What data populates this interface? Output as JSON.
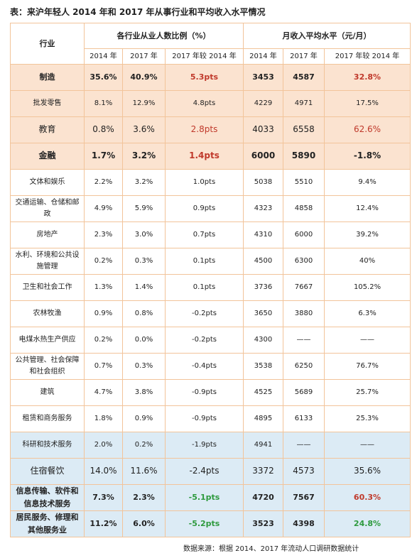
{
  "title": "表：来沪年轻人 2014 年和 2017 年从事行业和平均收入水平情况",
  "table": {
    "header": {
      "industry": "行业",
      "group1": "各行业从业人数比例（%）",
      "group2": "月收入平均水平（元/月）",
      "subheaders": [
        "2014 年",
        "2017 年",
        "2017 年较 2014 年",
        "2014 年",
        "2017 年",
        "2017 年较 2014 年"
      ]
    },
    "rows": [
      [
        "制造",
        "35.6%",
        "40.9%",
        "5.3pts",
        "3453",
        "4587",
        "32.8%"
      ],
      [
        "批发零售",
        "8.1%",
        "12.9%",
        "4.8pts",
        "4229",
        "4971",
        "17.5%"
      ],
      [
        "教育",
        "0.8%",
        "3.6%",
        "2.8pts",
        "4033",
        "6558",
        "62.6%"
      ],
      [
        "金融",
        "1.7%",
        "3.2%",
        "1.4pts",
        "6000",
        "5890",
        "-1.8%"
      ],
      [
        "文体和娱乐",
        "2.2%",
        "3.2%",
        "1.0pts",
        "5038",
        "5510",
        "9.4%"
      ],
      [
        "交通运输、仓储和邮政",
        "4.9%",
        "5.9%",
        "0.9pts",
        "4323",
        "4858",
        "12.4%"
      ],
      [
        "房地产",
        "2.3%",
        "3.0%",
        "0.7pts",
        "4310",
        "6000",
        "39.2%"
      ],
      [
        "水利、环境和公共设施管理",
        "0.2%",
        "0.3%",
        "0.1pts",
        "4500",
        "6300",
        "40%"
      ],
      [
        "卫生和社会工作",
        "1.3%",
        "1.4%",
        "0.1pts",
        "3736",
        "7667",
        "105.2%"
      ],
      [
        "农林牧渔",
        "0.9%",
        "0.8%",
        "-0.2pts",
        "3650",
        "3880",
        "6.3%"
      ],
      [
        "电煤水热生产供应",
        "0.2%",
        "0.0%",
        "-0.2pts",
        "4300",
        "——",
        "——"
      ],
      [
        "公共管理、社会保障和社会组织",
        "0.7%",
        "0.3%",
        "-0.4pts",
        "3538",
        "6250",
        "76.7%"
      ],
      [
        "建筑",
        "4.7%",
        "3.8%",
        "-0.9pts",
        "4525",
        "5689",
        "25.7%"
      ],
      [
        "租赁和商务服务",
        "1.8%",
        "0.9%",
        "-0.9pts",
        "4895",
        "6133",
        "25.3%"
      ],
      [
        "科研和技术服务",
        "2.0%",
        "0.2%",
        "-1.9pts",
        "4941",
        "——",
        "——"
      ],
      [
        "住宿餐饮",
        "14.0%",
        "11.6%",
        "-2.4pts",
        "3372",
        "4573",
        "35.6%"
      ],
      [
        "信息传输、软件和信息技术服务",
        "7.3%",
        "2.3%",
        "-5.1pts",
        "4720",
        "7567",
        "60.3%"
      ],
      [
        "居民服务、修理和其他服务业",
        "11.2%",
        "6.0%",
        "-5.2pts",
        "3523",
        "4398",
        "24.8%"
      ]
    ]
  },
  "source": "数据来源：根据 2014、2017 年流动人口调研数据统计"
}
